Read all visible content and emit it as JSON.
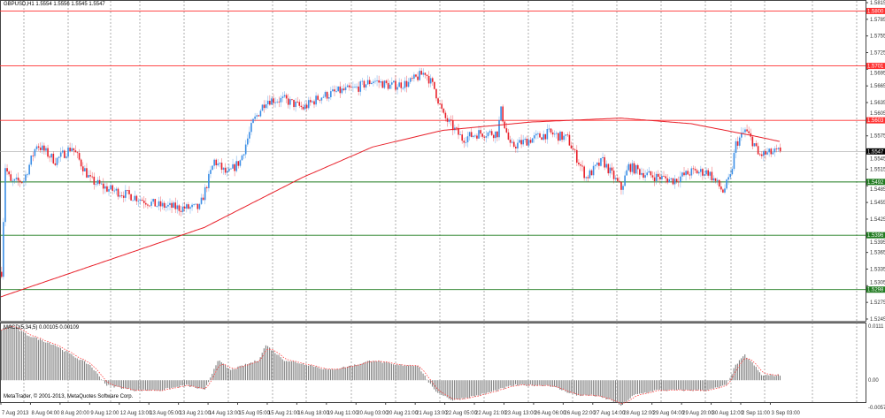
{
  "window": {
    "title": "GBPUSD,H1 1.5554 1.5556 1.5545 1.5547",
    "macd_title": "MACD(5,34,5) 0.00105 0.00109",
    "copyright": "MetaTrader, © 2001-2013, MetaQuotes Software Corp."
  },
  "colors": {
    "bull": "#3a8ee6",
    "bear": "#e8202a",
    "ma": "#e8202a",
    "resistance": "#ff3030",
    "support": "#1f7a1f",
    "grid": "#777777",
    "histogram": "#808080",
    "signal": "#ff4040",
    "current_price": "#000000"
  },
  "chart_data": [
    {
      "type": "candlestick",
      "symbol": "GBPUSD",
      "timeframe": "H1",
      "ylim": [
        1.5245,
        1.5815
      ],
      "y_ticks": [
        "1.5815",
        "1.5785",
        "1.5755",
        "1.5725",
        "1.5695",
        "1.5665",
        "1.5635",
        "1.5605",
        "1.5575",
        "1.5545",
        "1.5515",
        "1.5485",
        "1.5455",
        "1.5425",
        "1.5395",
        "1.5365",
        "1.5335",
        "1.5305",
        "1.5275",
        "1.5245"
      ],
      "x_ticks": [
        "7 Aug 2013",
        "8 Aug 04:00",
        "8 Aug 20:00",
        "9 Aug 12:00",
        "12 Aug 13:00",
        "13 Aug 05:00",
        "13 Aug 21:00",
        "14 Aug 13:00",
        "15 Aug 05:00",
        "15 Aug 21:00",
        "16 Aug 18:00",
        "19 Aug 11:00",
        "20 Aug 03:00",
        "20 Aug 21:00",
        "21 Aug 13:00",
        "22 Aug 05:00",
        "22 Aug 21:00",
        "23 Aug 13:00",
        "26 Aug 06:00",
        "26 Aug 22:00",
        "27 Aug 14:00",
        "28 Aug 12:00",
        "29 Aug 04:00",
        "29 Aug 20:00",
        "30 Aug 12:00",
        "2 Sep 11:00",
        "3 Sep 03:00"
      ],
      "bars_per_tick": 16,
      "ohlc_last": {
        "open": 1.5554,
        "high": 1.5556,
        "low": 1.5545,
        "close": 1.5547
      },
      "close_path": [
        [
          0,
          1.533
        ],
        [
          2,
          1.552
        ],
        [
          5,
          1.549
        ],
        [
          12,
          1.5495
        ],
        [
          19,
          1.556
        ],
        [
          29,
          1.553
        ],
        [
          38,
          1.5555
        ],
        [
          48,
          1.5495
        ],
        [
          57,
          1.548
        ],
        [
          72,
          1.5465
        ],
        [
          84,
          1.545
        ],
        [
          96,
          1.5445
        ],
        [
          107,
          1.5445
        ],
        [
          115,
          1.553
        ],
        [
          122,
          1.5505
        ],
        [
          129,
          1.553
        ],
        [
          136,
          1.56
        ],
        [
          143,
          1.564
        ],
        [
          153,
          1.564
        ],
        [
          163,
          1.5625
        ],
        [
          172,
          1.5645
        ],
        [
          182,
          1.5655
        ],
        [
          191,
          1.566
        ],
        [
          201,
          1.5675
        ],
        [
          210,
          1.5665
        ],
        [
          220,
          1.567
        ],
        [
          229,
          1.569
        ],
        [
          234,
          1.566
        ],
        [
          239,
          1.561
        ],
        [
          249,
          1.557
        ],
        [
          258,
          1.558
        ],
        [
          268,
          1.558
        ],
        [
          270,
          1.562
        ],
        [
          275,
          1.5555
        ],
        [
          287,
          1.557
        ],
        [
          296,
          1.558
        ],
        [
          306,
          1.557
        ],
        [
          316,
          1.55
        ],
        [
          325,
          1.553
        ],
        [
          335,
          1.548
        ],
        [
          339,
          1.552
        ],
        [
          349,
          1.5505
        ],
        [
          363,
          1.5495
        ],
        [
          373,
          1.551
        ],
        [
          382,
          1.551
        ],
        [
          390,
          1.5475
        ],
        [
          394,
          1.55
        ],
        [
          397,
          1.556
        ],
        [
          402,
          1.5585
        ],
        [
          407,
          1.556
        ],
        [
          409,
          1.554
        ],
        [
          421,
          1.5547
        ]
      ],
      "moving_average": [
        [
          0,
          1.5285
        ],
        [
          110,
          1.541
        ],
        [
          163,
          1.55
        ],
        [
          201,
          1.5555
        ],
        [
          239,
          1.5585
        ],
        [
          287,
          1.56
        ],
        [
          335,
          1.5607
        ],
        [
          373,
          1.5597
        ],
        [
          407,
          1.5575
        ],
        [
          421,
          1.5565
        ]
      ],
      "levels": [
        {
          "label": "1.5800",
          "value": 1.58,
          "kind": "resistance"
        },
        {
          "label": "1.5701",
          "value": 1.5701,
          "kind": "resistance"
        },
        {
          "label": "1.5603",
          "value": 1.5603,
          "kind": "resistance"
        },
        {
          "label": "1.5547",
          "value": 1.5547,
          "kind": "current"
        },
        {
          "label": "1.5492",
          "value": 1.5492,
          "kind": "support"
        },
        {
          "label": "1.5396",
          "value": 1.5396,
          "kind": "support"
        },
        {
          "label": "1.5298",
          "value": 1.5298,
          "kind": "support"
        }
      ]
    },
    {
      "type": "bar",
      "name": "MACD(5,34,5)",
      "ylim": [
        -0.00575,
        0.0111
      ],
      "y_ticks": [
        "0.0111",
        "0.00",
        "-0.00575"
      ],
      "histogram_path": [
        [
          0,
          0.01
        ],
        [
          5,
          0.011
        ],
        [
          14,
          0.009
        ],
        [
          29,
          0.007
        ],
        [
          38,
          0.005
        ],
        [
          48,
          0.003
        ],
        [
          57,
          -0.001
        ],
        [
          72,
          -0.002
        ],
        [
          86,
          -0.002
        ],
        [
          100,
          -0.001
        ],
        [
          110,
          -0.002
        ],
        [
          117,
          0.004
        ],
        [
          124,
          0.002
        ],
        [
          139,
          0.004
        ],
        [
          143,
          0.007
        ],
        [
          153,
          0.004
        ],
        [
          167,
          0.003
        ],
        [
          177,
          0.002
        ],
        [
          191,
          0.003
        ],
        [
          201,
          0.004
        ],
        [
          213,
          0.003
        ],
        [
          225,
          0.003
        ],
        [
          234,
          -0.002
        ],
        [
          244,
          -0.004
        ],
        [
          258,
          -0.003
        ],
        [
          268,
          -0.002
        ],
        [
          277,
          -0.001
        ],
        [
          296,
          -0.001
        ],
        [
          311,
          -0.003
        ],
        [
          320,
          -0.003
        ],
        [
          330,
          -0.004
        ],
        [
          335,
          -0.005
        ],
        [
          342,
          -0.003
        ],
        [
          354,
          -0.002
        ],
        [
          363,
          -0.002
        ],
        [
          382,
          -0.002
        ],
        [
          392,
          -0.001
        ],
        [
          397,
          0.003
        ],
        [
          402,
          0.005
        ],
        [
          407,
          0.003
        ],
        [
          411,
          0.001
        ],
        [
          421,
          0.001
        ]
      ]
    }
  ]
}
